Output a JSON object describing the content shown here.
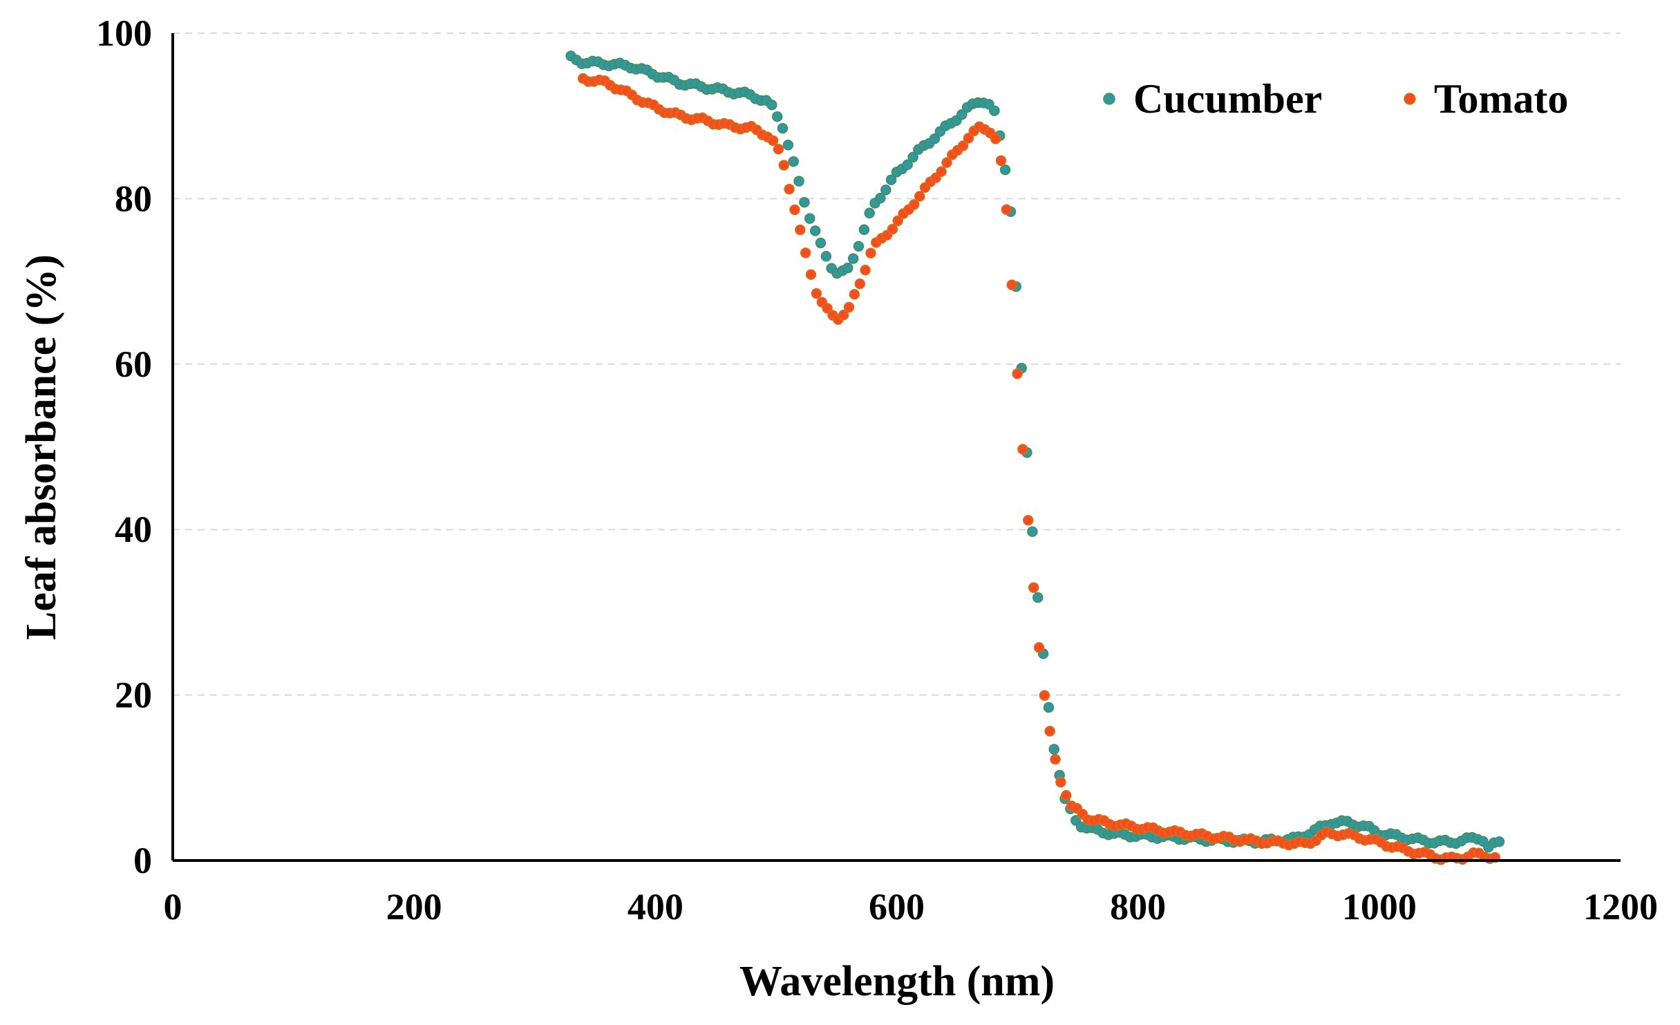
{
  "chart_data": {
    "type": "scatter",
    "title": "",
    "xlabel": "Wavelength (nm)",
    "ylabel": "Leaf absorbance (%)",
    "xlim": [
      0,
      1200
    ],
    "ylim": [
      0,
      100
    ],
    "xticks": [
      0,
      200,
      400,
      600,
      800,
      1000,
      1200
    ],
    "yticks": [
      0,
      20,
      40,
      60,
      80,
      100
    ],
    "grid": "horizontal dashed",
    "legend_position": "top-right",
    "series": [
      {
        "name": "Cucumber",
        "color": "#2e9aa0",
        "edge_color": "#4a8a55",
        "anchors": [
          [
            330,
            97
          ],
          [
            340,
            96.5
          ],
          [
            360,
            96.3
          ],
          [
            380,
            96
          ],
          [
            400,
            95
          ],
          [
            420,
            94
          ],
          [
            440,
            93.5
          ],
          [
            460,
            93
          ],
          [
            480,
            92.5
          ],
          [
            495,
            91.5
          ],
          [
            505,
            89
          ],
          [
            515,
            84
          ],
          [
            525,
            79
          ],
          [
            535,
            75
          ],
          [
            545,
            72
          ],
          [
            552,
            70.8
          ],
          [
            560,
            71.5
          ],
          [
            570,
            75
          ],
          [
            580,
            79
          ],
          [
            600,
            83
          ],
          [
            620,
            86
          ],
          [
            640,
            88.5
          ],
          [
            660,
            91
          ],
          [
            670,
            92
          ],
          [
            680,
            91
          ],
          [
            688,
            86
          ],
          [
            695,
            78
          ],
          [
            700,
            67
          ],
          [
            705,
            56
          ],
          [
            710,
            45
          ],
          [
            715,
            35
          ],
          [
            720,
            27
          ],
          [
            725,
            19.5
          ],
          [
            730,
            14
          ],
          [
            740,
            7
          ],
          [
            750,
            4.5
          ],
          [
            760,
            3.8
          ],
          [
            780,
            3.2
          ],
          [
            800,
            3
          ],
          [
            830,
            2.8
          ],
          [
            860,
            2.5
          ],
          [
            900,
            2.3
          ],
          [
            930,
            2.6
          ],
          [
            945,
            3.5
          ],
          [
            960,
            4.6
          ],
          [
            975,
            4.6
          ],
          [
            990,
            4.0
          ],
          [
            1000,
            3.3
          ],
          [
            1020,
            2.8
          ],
          [
            1040,
            2.3
          ],
          [
            1060,
            2.2
          ],
          [
            1075,
            2.6
          ],
          [
            1085,
            2.8
          ],
          [
            1090,
            1.5
          ],
          [
            1100,
            2.3
          ]
        ]
      },
      {
        "name": "Tomato",
        "color": "#ff4a1c",
        "edge_color": "#c07a20",
        "anchors": [
          [
            340,
            94.5
          ],
          [
            360,
            94
          ],
          [
            380,
            92.5
          ],
          [
            400,
            91
          ],
          [
            420,
            90
          ],
          [
            440,
            89.5
          ],
          [
            460,
            88.8
          ],
          [
            480,
            88.5
          ],
          [
            495,
            87.5
          ],
          [
            505,
            85
          ],
          [
            515,
            79
          ],
          [
            525,
            73
          ],
          [
            535,
            68
          ],
          [
            545,
            66
          ],
          [
            552,
            65.6
          ],
          [
            560,
            66.5
          ],
          [
            570,
            70
          ],
          [
            580,
            74
          ],
          [
            600,
            77
          ],
          [
            620,
            80.5
          ],
          [
            640,
            84
          ],
          [
            660,
            87.5
          ],
          [
            670,
            88.7
          ],
          [
            680,
            88
          ],
          [
            685,
            86
          ],
          [
            690,
            80.5
          ],
          [
            695,
            71
          ],
          [
            700,
            59
          ],
          [
            705,
            48.5
          ],
          [
            710,
            39
          ],
          [
            715,
            30.5
          ],
          [
            720,
            23
          ],
          [
            725,
            17
          ],
          [
            730,
            13
          ],
          [
            735,
            10
          ],
          [
            745,
            6.5
          ],
          [
            760,
            5
          ],
          [
            780,
            4.4
          ],
          [
            800,
            4
          ],
          [
            830,
            3.4
          ],
          [
            860,
            2.9
          ],
          [
            900,
            2.3
          ],
          [
            940,
            2.0
          ],
          [
            955,
            3.2
          ],
          [
            970,
            3.2
          ],
          [
            990,
            2.6
          ],
          [
            1000,
            2.2
          ],
          [
            1020,
            1.3
          ],
          [
            1040,
            0.7
          ],
          [
            1050,
            0.3
          ],
          [
            1060,
            0.2
          ],
          [
            1070,
            0.4
          ],
          [
            1080,
            0.8
          ],
          [
            1090,
            0.5
          ],
          [
            1100,
            0.2
          ]
        ]
      }
    ]
  }
}
